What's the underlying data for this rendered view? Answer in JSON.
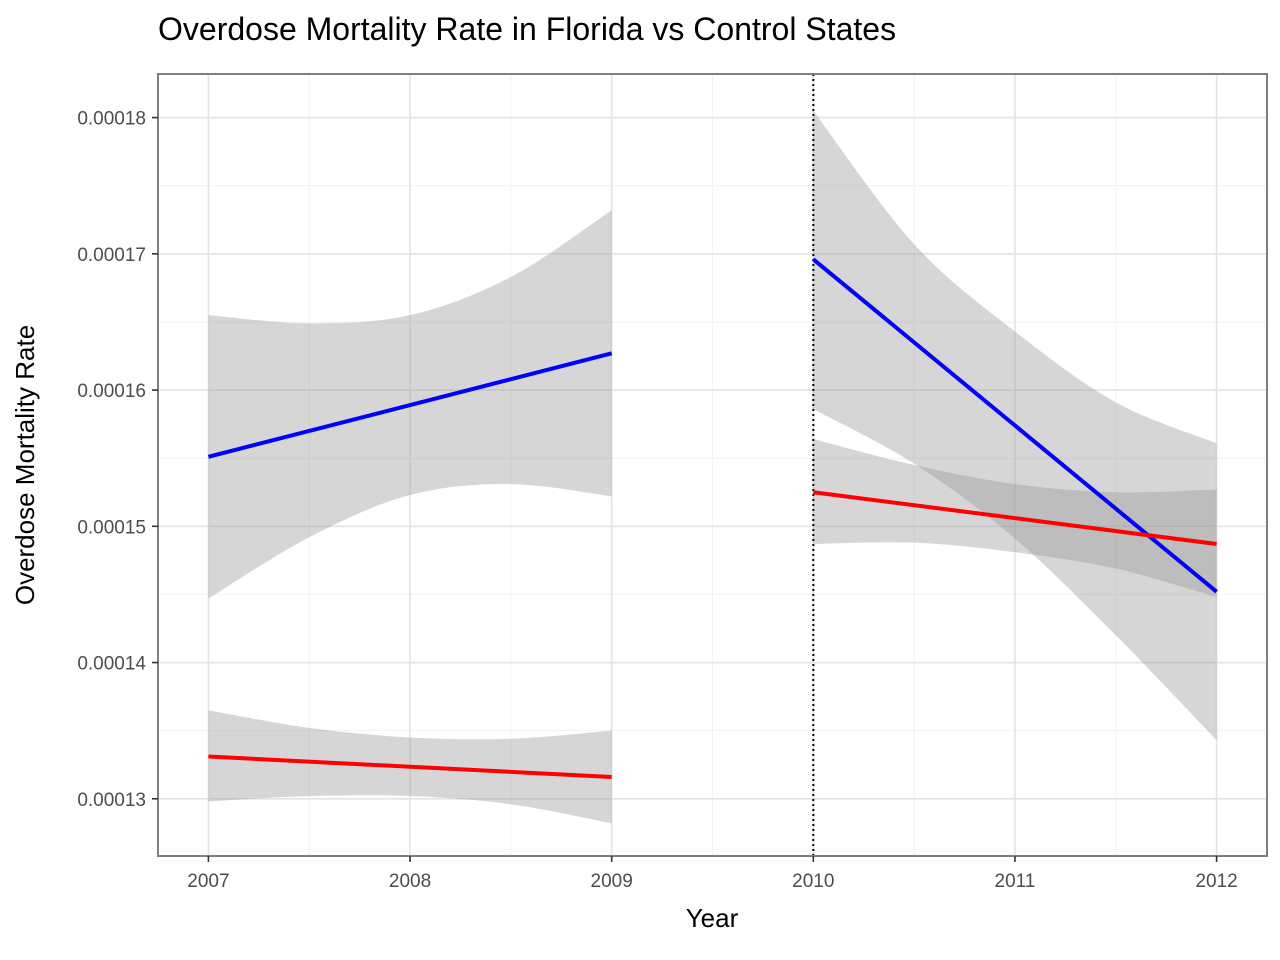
{
  "chart_data": {
    "type": "line",
    "title": "Overdose Mortality Rate in Florida vs Control States",
    "xlabel": "Year",
    "ylabel": "Overdose Mortality Rate",
    "x_ticks": [
      2007,
      2008,
      2009,
      2010,
      2011,
      2012
    ],
    "x_tick_labels": [
      "2007",
      "2008",
      "2009",
      "2010",
      "2011",
      "2012"
    ],
    "y_ticks": [
      0.00013,
      0.00014,
      0.00015,
      0.00016,
      0.00017,
      0.00018
    ],
    "y_tick_labels": [
      "0.00013",
      "0.00014",
      "0.00015",
      "0.00016",
      "0.00017",
      "0.00018"
    ],
    "xlim": [
      2006.75,
      2012.25
    ],
    "ylim": [
      0.0001258,
      0.0001832
    ],
    "grid": true,
    "vline": {
      "x": 2010,
      "style": "dotted",
      "color": "#000000"
    },
    "series": [
      {
        "color": "#0000ff",
        "segments": [
          {
            "x": [
              2007,
              2009
            ],
            "y": [
              0.0001551,
              0.0001627
            ],
            "band": {
              "x": [
                2007,
                2007.5,
                2008,
                2008.5,
                2009
              ],
              "lower": [
                0.0001447,
                0.0001492,
                0.0001523,
                0.0001531,
                0.0001522
              ],
              "upper": [
                0.0001655,
                0.0001649,
                0.0001655,
                0.0001683,
                0.0001732
              ]
            }
          },
          {
            "x": [
              2010,
              2012
            ],
            "y": [
              0.0001696,
              0.0001452
            ],
            "band": {
              "x": [
                2010,
                2010.5,
                2011,
                2011.5,
                2012
              ],
              "lower": [
                0.0001586,
                0.0001546,
                0.0001491,
                0.000142,
                0.0001343
              ],
              "upper": [
                0.0001805,
                0.0001707,
                0.0001643,
                0.0001591,
                0.0001561
              ]
            }
          }
        ]
      },
      {
        "color": "#ff0000",
        "segments": [
          {
            "x": [
              2007,
              2009
            ],
            "y": [
              0.0001331,
              0.0001316
            ],
            "band": {
              "x": [
                2007,
                2007.5,
                2008,
                2008.5,
                2009
              ],
              "lower": [
                0.0001298,
                0.0001302,
                0.0001302,
                0.0001296,
                0.0001282
              ],
              "upper": [
                0.0001365,
                0.0001352,
                0.0001345,
                0.0001344,
                0.000135
              ]
            }
          },
          {
            "x": [
              2010,
              2012
            ],
            "y": [
              0.0001525,
              0.0001487
            ],
            "band": {
              "x": [
                2010,
                2010.5,
                2011,
                2011.5,
                2012
              ],
              "lower": [
                0.0001487,
                0.0001488,
                0.0001481,
                0.0001469,
                0.0001448
              ],
              "upper": [
                0.0001564,
                0.0001545,
                0.0001531,
                0.0001525,
                0.0001527
              ]
            }
          }
        ]
      }
    ]
  }
}
